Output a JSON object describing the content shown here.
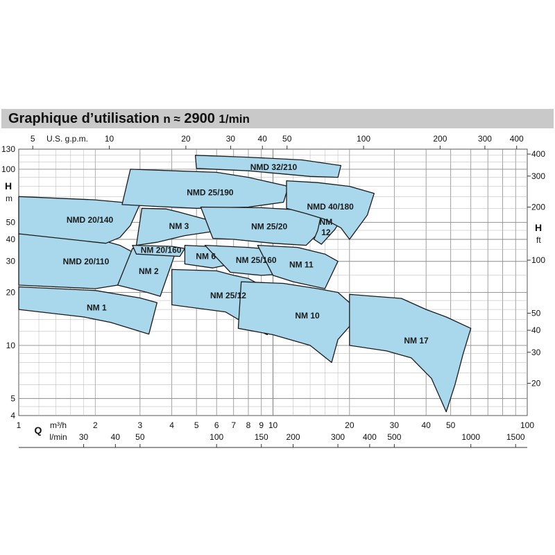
{
  "title": {
    "main": "Graphique d’utilisation",
    "speed_prefix": "n ≈",
    "speed_value": "2900",
    "speed_unit": "1/min"
  },
  "colors": {
    "region_fill": "#a9d8ec",
    "region_stroke": "#1a1a1a",
    "title_bar": "#c9c9c9",
    "grid": "#8a8a8a"
  },
  "chart_data": {
    "type": "area",
    "x_scale": "log",
    "y_scale": "log",
    "xlabel": "Q",
    "x_units": [
      "m³/h",
      "l/min"
    ],
    "ylabel_left": "H",
    "ylabel_left_unit": "m",
    "ylabel_right": "H",
    "ylabel_right_unit": "ft",
    "top_axis_label": "U.S. g.p.m.",
    "xlim": [
      1,
      100
    ],
    "ylim": [
      4,
      130
    ],
    "x_ticks_m3h": [
      1,
      2,
      3,
      4,
      5,
      6,
      7,
      8,
      9,
      10,
      20,
      30,
      40,
      50,
      100
    ],
    "x_ticks_lmin": [
      30,
      40,
      50,
      100,
      150,
      200,
      300,
      400,
      500,
      1000,
      1500
    ],
    "x_ticks_gpm": [
      5,
      10,
      20,
      30,
      40,
      50,
      100,
      200,
      300,
      400
    ],
    "y_ticks_m": [
      4,
      5,
      10,
      20,
      30,
      40,
      50,
      100,
      130
    ],
    "y_ticks_ft": [
      20,
      30,
      40,
      50,
      100,
      200,
      300,
      400
    ],
    "grid": true,
    "regions": [
      {
        "name": "NM 1",
        "points": [
          [
            1,
            21.5
          ],
          [
            2,
            20.5
          ],
          [
            3,
            18.6
          ],
          [
            3.5,
            17.5
          ],
          [
            3.25,
            11.6
          ],
          [
            2.3,
            13.5
          ],
          [
            1.8,
            14.5
          ],
          [
            1,
            16
          ]
        ]
      },
      {
        "name": "NMD 20/110",
        "points": [
          [
            1,
            43
          ],
          [
            2,
            40.5
          ],
          [
            2.5,
            37
          ],
          [
            2.9,
            33
          ],
          [
            2.45,
            22
          ],
          [
            2,
            21
          ],
          [
            1,
            22
          ]
        ]
      },
      {
        "name": "NMD 20/140",
        "points": [
          [
            1,
            70
          ],
          [
            2,
            67
          ],
          [
            3,
            63.5
          ],
          [
            2.75,
            48
          ],
          [
            2.5,
            41
          ],
          [
            2.2,
            38
          ],
          [
            1,
            43
          ]
        ]
      },
      {
        "name": "NM 2",
        "points": [
          [
            2.8,
            35.5
          ],
          [
            3.6,
            34.5
          ],
          [
            4.1,
            32.5
          ],
          [
            3.6,
            19
          ],
          [
            3.2,
            20
          ],
          [
            2.45,
            22
          ]
        ]
      },
      {
        "name": "NM 3",
        "points": [
          [
            3.05,
            60
          ],
          [
            3.8,
            59.5
          ],
          [
            4.2,
            57.5
          ],
          [
            6,
            50
          ],
          [
            6.3,
            45.5
          ],
          [
            5.6,
            44
          ],
          [
            4.5,
            42
          ],
          [
            3.5,
            38.5
          ],
          [
            2.9,
            37
          ]
        ]
      },
      {
        "name": "NM 20/160",
        "points": [
          [
            2.8,
            37
          ],
          [
            4,
            36.5
          ],
          [
            4.5,
            35.5
          ],
          [
            4.3,
            32
          ],
          [
            2.9,
            33
          ]
        ]
      },
      {
        "name": "NM 6",
        "points": [
          [
            4.5,
            37
          ],
          [
            5.5,
            36.5
          ],
          [
            6.2,
            35.5
          ],
          [
            6.5,
            28.5
          ],
          [
            5.8,
            27.5
          ],
          [
            4.5,
            29
          ]
        ]
      },
      {
        "name": "NM 25/12",
        "points": [
          [
            4,
            27
          ],
          [
            6,
            26.5
          ],
          [
            7,
            25
          ],
          [
            8,
            24
          ],
          [
            9.8,
            20.5
          ],
          [
            9.5,
            11.5
          ],
          [
            8,
            13
          ],
          [
            6.5,
            15.5
          ],
          [
            4,
            17
          ]
        ]
      },
      {
        "name": "NMD 25/190",
        "points": [
          [
            2.75,
            100
          ],
          [
            6,
            96
          ],
          [
            8,
            90
          ],
          [
            11.5,
            80
          ],
          [
            11,
            65
          ],
          [
            8,
            61
          ],
          [
            5,
            60
          ],
          [
            3.5,
            61.5
          ],
          [
            2.55,
            63
          ]
        ]
      },
      {
        "name": "NMD 32/210",
        "points": [
          [
            4.95,
            120
          ],
          [
            8,
            117
          ],
          [
            13,
            113
          ],
          [
            18.5,
            105
          ],
          [
            18,
            90
          ],
          [
            14,
            91
          ],
          [
            11,
            94
          ],
          [
            8,
            98
          ],
          [
            5,
            101
          ]
        ]
      },
      {
        "name": "NM 25/20",
        "points": [
          [
            5.2,
            61
          ],
          [
            9,
            60.5
          ],
          [
            12,
            59
          ],
          [
            16,
            55.5
          ],
          [
            15,
            43
          ],
          [
            13.5,
            37
          ],
          [
            10,
            38
          ],
          [
            7,
            40
          ],
          [
            5.8,
            40.5
          ]
        ]
      },
      {
        "name": "NM 12",
        "points": [
          [
            15.5,
            56
          ],
          [
            17,
            54
          ],
          [
            18.5,
            51.5
          ],
          [
            17.5,
            45.5
          ],
          [
            15.5,
            37.5
          ],
          [
            14.5,
            40
          ],
          [
            15,
            45
          ]
        ]
      },
      {
        "name": "NM 25/160",
        "points": [
          [
            5.4,
            37
          ],
          [
            8,
            36
          ],
          [
            10,
            35
          ],
          [
            11.5,
            31.5
          ],
          [
            11.3,
            25.5
          ],
          [
            9,
            25
          ],
          [
            6.8,
            26
          ]
        ]
      },
      {
        "name": "NM 11",
        "points": [
          [
            8.7,
            37
          ],
          [
            12.5,
            36
          ],
          [
            16,
            33
          ],
          [
            18,
            30
          ],
          [
            16,
            21
          ],
          [
            12,
            23
          ],
          [
            10,
            25
          ]
        ]
      },
      {
        "name": "NMD 40/180",
        "points": [
          [
            11.3,
            86
          ],
          [
            15,
            84
          ],
          [
            20,
            80
          ],
          [
            25,
            73
          ],
          [
            23.5,
            55
          ],
          [
            20,
            40
          ],
          [
            18.5,
            46.5
          ],
          [
            16,
            52
          ],
          [
            13.5,
            56
          ],
          [
            11.3,
            60
          ]
        ]
      },
      {
        "name": "NM 10",
        "points": [
          [
            7.5,
            23
          ],
          [
            11,
            22.5
          ],
          [
            15,
            21
          ],
          [
            18,
            20
          ],
          [
            20,
            17.5
          ],
          [
            22,
            15
          ],
          [
            18,
            10.8
          ],
          [
            17,
            8
          ],
          [
            14,
            10
          ],
          [
            10,
            11.5
          ],
          [
            7.3,
            12.5
          ]
        ]
      },
      {
        "name": "NM 17",
        "points": [
          [
            20,
            19.5
          ],
          [
            25,
            19
          ],
          [
            32,
            18.5
          ],
          [
            40,
            16
          ],
          [
            48,
            14.5
          ],
          [
            60,
            12.5
          ],
          [
            56,
            9
          ],
          [
            52,
            6
          ],
          [
            48,
            4.2
          ],
          [
            42,
            6.5
          ],
          [
            35,
            8.5
          ],
          [
            28,
            9.3
          ],
          [
            20,
            10
          ]
        ]
      }
    ]
  }
}
